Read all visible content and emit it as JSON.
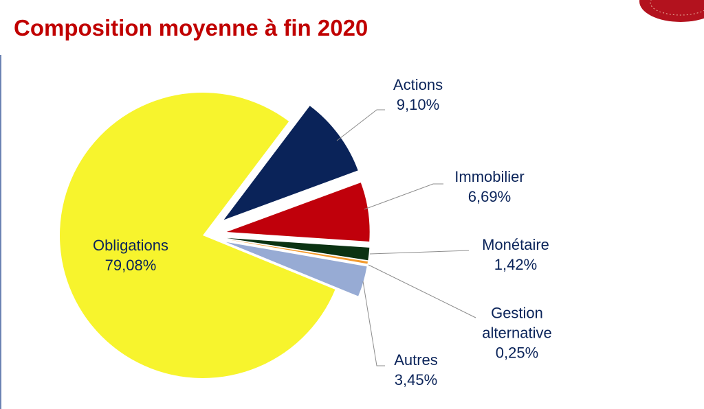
{
  "chart_data": {
    "type": "pie",
    "title": "Composition moyenne à fin 2020",
    "categories": [
      "Actions",
      "Immobilier",
      "Monétaire",
      "Gestion alternative",
      "Autres",
      "Obligations"
    ],
    "values": [
      9.1,
      6.69,
      1.42,
      0.25,
      3.45,
      79.08
    ],
    "value_labels": [
      "9,10%",
      "6,69%",
      "1,42%",
      "0,25%",
      "3,45%",
      "79,08%"
    ],
    "colors": [
      "#0a2359",
      "#c0000b",
      "#0b3212",
      "#f39a2d",
      "#97abd4",
      "#f7f42d"
    ]
  }
}
